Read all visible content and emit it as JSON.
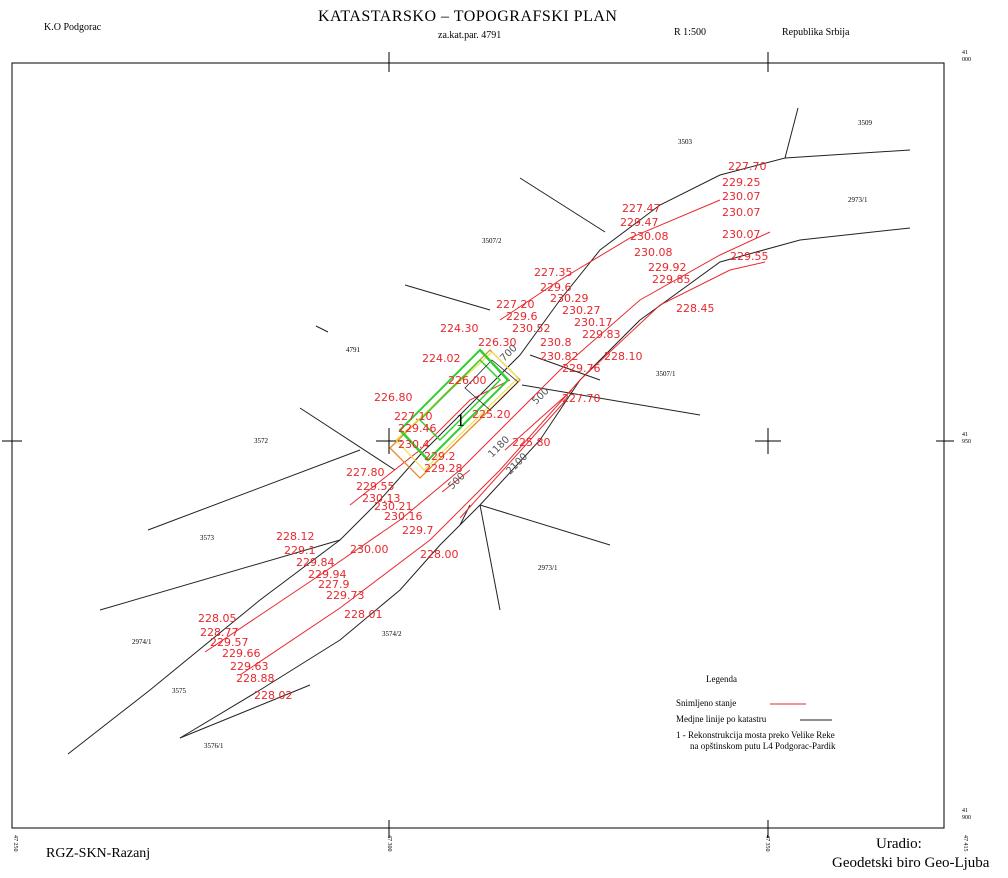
{
  "header": {
    "title": "KATASTARSKO – TOPOGRAFSKI PLAN",
    "subtitle": "za.kat.par. 4791",
    "municipality": "K.O Podgorac",
    "scale": "R 1:500",
    "country": "Republika Srbija"
  },
  "footer": {
    "agency": "RGZ-SKN-Razanj",
    "made_by_label": "Uradio:",
    "made_by": "Geodetski biro Geo-Ljuba"
  },
  "frame": {
    "coords": [
      {
        "id": "tr",
        "lines": [
          "41",
          "000"
        ]
      },
      {
        "id": "r-mid",
        "lines": [
          "41",
          "950"
        ]
      },
      {
        "id": "br",
        "lines": [
          "41",
          "900"
        ]
      },
      {
        "id": "b1",
        "lines": [
          "47",
          "250"
        ]
      },
      {
        "id": "b2",
        "lines": [
          "47",
          "300"
        ]
      },
      {
        "id": "b3",
        "lines": [
          "47",
          "350"
        ]
      },
      {
        "id": "b4",
        "lines": [
          "47",
          "415"
        ]
      }
    ]
  },
  "parcels": [
    "3509",
    "3503",
    "2973/1",
    "3507/2",
    "4791",
    "3507/1",
    "3572",
    "3573",
    "2973/1",
    "2974/1",
    "3574/2",
    "3575",
    "3576/1"
  ],
  "object_label": "1",
  "elevations": [
    "227.70",
    "229.25",
    "230.07",
    "230.07",
    "230.07",
    "229.55",
    "227.47",
    "229.47",
    "230.08",
    "230.08",
    "229.92",
    "229.85",
    "228.45",
    "227.35",
    "229.6",
    "230.29",
    "230.27",
    "230.17",
    "229.83",
    "227.20",
    "229.6",
    "230.52",
    "230.8",
    "230.82",
    "228.10",
    "229.76",
    "224.30",
    "226.30",
    "224.02",
    "226.00",
    "225.20",
    "227.70",
    "226.80",
    "227.10",
    "229.46",
    "230.4",
    "229.2",
    "229.28",
    "225.80",
    "227.80",
    "229.55",
    "230.13",
    "230.21",
    "230.16",
    "229.7",
    "228.12",
    "229.1",
    "229.84",
    "230.00",
    "228.00",
    "229.94",
    "227.9",
    "229.73",
    "228.01",
    "228.05",
    "228.77",
    "229.57",
    "229.66",
    "229.63",
    "228.88",
    "228.02"
  ],
  "dimensions": [
    "700",
    "500",
    "1180",
    "2100",
    "500"
  ],
  "legend": {
    "title": "Legenda",
    "items": [
      {
        "label": "Snimljeno stanje",
        "color": "#e8282d"
      },
      {
        "label": "Medjne linije po katastru",
        "color": "#222222"
      }
    ],
    "note_line1": "1 - Rekonstrukcija mosta preko Velike Reke",
    "note_line2": "na opštinskom putu L4 Podgorac-Pardik"
  },
  "colors": {
    "survey": "#e8282d",
    "cadastre": "#222222",
    "bridge_green": "#2fd12f",
    "bridge_orange": "#e8892d",
    "bridge_yellow": "#f0e04a"
  }
}
